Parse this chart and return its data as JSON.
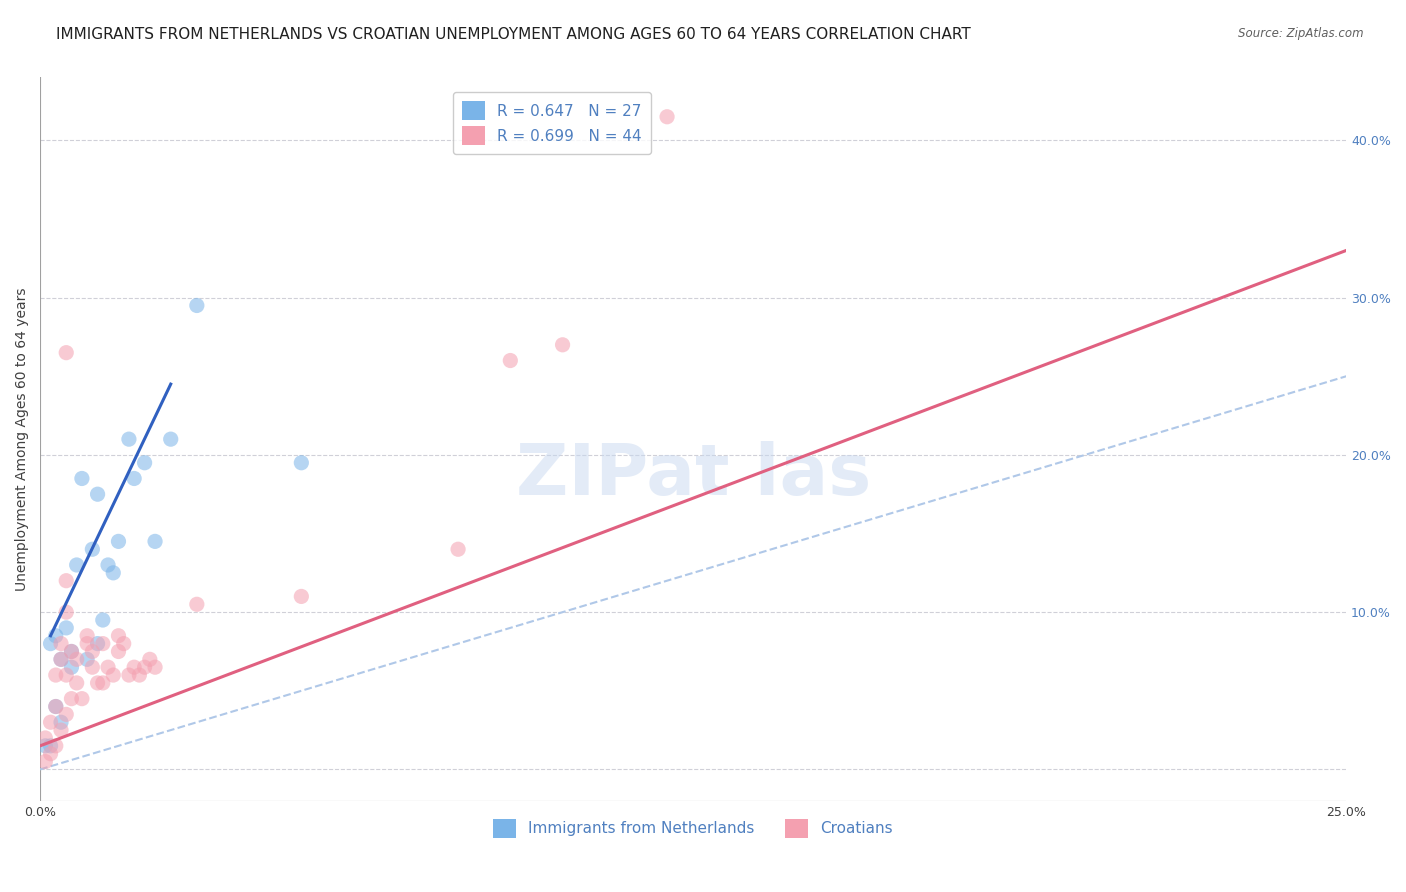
{
  "title": "IMMIGRANTS FROM NETHERLANDS VS CROATIAN UNEMPLOYMENT AMONG AGES 60 TO 64 YEARS CORRELATION CHART",
  "source": "Source: ZipAtlas.com",
  "xlabel": "",
  "ylabel": "Unemployment Among Ages 60 to 64 years",
  "xlim": [
    0.0,
    0.25
  ],
  "ylim": [
    -0.02,
    0.44
  ],
  "xticks": [
    0.0,
    0.05,
    0.1,
    0.15,
    0.2,
    0.25
  ],
  "xticklabels": [
    "0.0%",
    "",
    "",
    "",
    "",
    "25.0%"
  ],
  "yticks_right": [
    0.0,
    0.1,
    0.2,
    0.3,
    0.4
  ],
  "yticklabels_right": [
    "",
    "10.0%",
    "20.0%",
    "30.0%",
    "40.0%"
  ],
  "legend_entries": [
    {
      "label": "R = 0.647   N = 27",
      "color": "#7ab4e8"
    },
    {
      "label": "R = 0.699   N = 44",
      "color": "#f4a0b0"
    }
  ],
  "netherlands_scatter": [
    [
      0.002,
      0.08
    ],
    [
      0.003,
      0.085
    ],
    [
      0.004,
      0.07
    ],
    [
      0.005,
      0.09
    ],
    [
      0.006,
      0.065
    ],
    [
      0.006,
      0.075
    ],
    [
      0.007,
      0.13
    ],
    [
      0.008,
      0.185
    ],
    [
      0.009,
      0.07
    ],
    [
      0.01,
      0.14
    ],
    [
      0.011,
      0.08
    ],
    [
      0.011,
      0.175
    ],
    [
      0.012,
      0.095
    ],
    [
      0.013,
      0.13
    ],
    [
      0.014,
      0.125
    ],
    [
      0.015,
      0.145
    ],
    [
      0.017,
      0.21
    ],
    [
      0.018,
      0.185
    ],
    [
      0.02,
      0.195
    ],
    [
      0.022,
      0.145
    ],
    [
      0.025,
      0.21
    ],
    [
      0.03,
      0.295
    ],
    [
      0.05,
      0.195
    ],
    [
      0.001,
      0.015
    ],
    [
      0.002,
      0.015
    ],
    [
      0.003,
      0.04
    ],
    [
      0.004,
      0.03
    ]
  ],
  "croatian_scatter": [
    [
      0.001,
      0.005
    ],
    [
      0.001,
      0.02
    ],
    [
      0.002,
      0.01
    ],
    [
      0.002,
      0.03
    ],
    [
      0.003,
      0.015
    ],
    [
      0.003,
      0.04
    ],
    [
      0.003,
      0.06
    ],
    [
      0.004,
      0.025
    ],
    [
      0.004,
      0.07
    ],
    [
      0.004,
      0.08
    ],
    [
      0.005,
      0.035
    ],
    [
      0.005,
      0.06
    ],
    [
      0.005,
      0.1
    ],
    [
      0.005,
      0.12
    ],
    [
      0.006,
      0.045
    ],
    [
      0.006,
      0.075
    ],
    [
      0.007,
      0.055
    ],
    [
      0.007,
      0.07
    ],
    [
      0.008,
      0.045
    ],
    [
      0.009,
      0.08
    ],
    [
      0.009,
      0.085
    ],
    [
      0.01,
      0.065
    ],
    [
      0.01,
      0.075
    ],
    [
      0.011,
      0.055
    ],
    [
      0.012,
      0.055
    ],
    [
      0.012,
      0.08
    ],
    [
      0.013,
      0.065
    ],
    [
      0.014,
      0.06
    ],
    [
      0.015,
      0.075
    ],
    [
      0.015,
      0.085
    ],
    [
      0.016,
      0.08
    ],
    [
      0.017,
      0.06
    ],
    [
      0.018,
      0.065
    ],
    [
      0.019,
      0.06
    ],
    [
      0.02,
      0.065
    ],
    [
      0.021,
      0.07
    ],
    [
      0.022,
      0.065
    ],
    [
      0.03,
      0.105
    ],
    [
      0.05,
      0.11
    ],
    [
      0.08,
      0.14
    ],
    [
      0.09,
      0.26
    ],
    [
      0.1,
      0.27
    ],
    [
      0.12,
      0.415
    ],
    [
      0.005,
      0.265
    ]
  ],
  "netherlands_line": [
    [
      0.002,
      0.085
    ],
    [
      0.025,
      0.245
    ]
  ],
  "croatian_line": [
    [
      0.0,
      0.015
    ],
    [
      0.25,
      0.33
    ]
  ],
  "dot_size": 120,
  "netherlands_color": "#7ab4e8",
  "croatian_color": "#f4a0b0",
  "netherlands_line_color": "#3060c0",
  "croatian_line_color": "#e06080",
  "diagonal_color": "#b0c8e8",
  "bg_color": "#ffffff",
  "grid_color": "#d0d0d8",
  "title_fontsize": 11,
  "axis_label_fontsize": 10,
  "tick_fontsize": 9,
  "legend_fontsize": 11
}
